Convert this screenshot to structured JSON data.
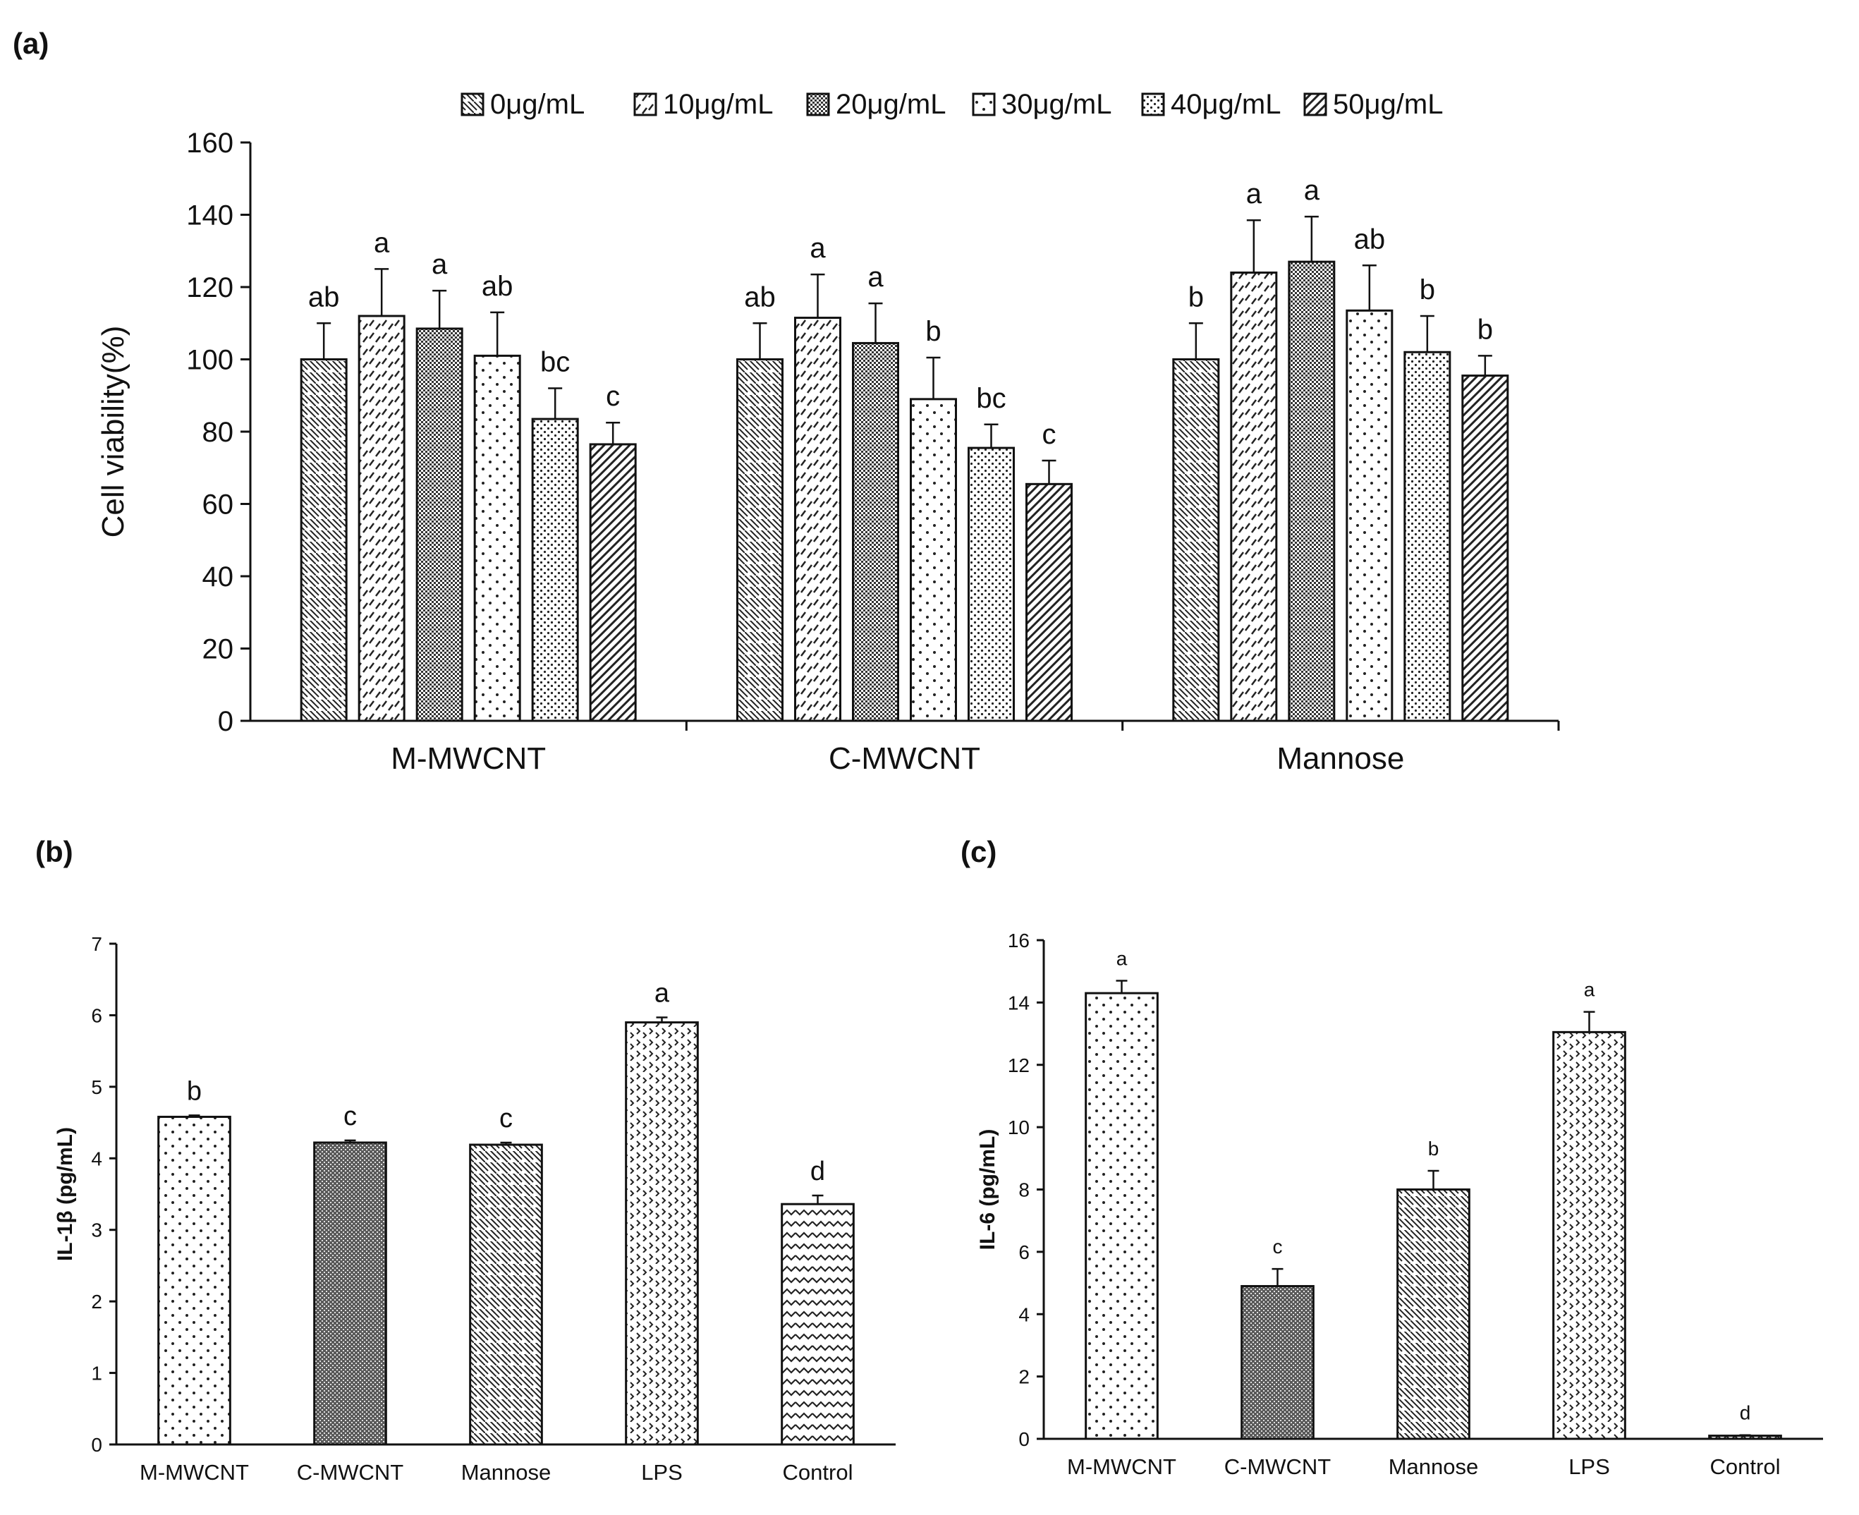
{
  "panels": {
    "a": "(a)",
    "b": "(b)",
    "c": "(c)"
  },
  "chart_data": [
    {
      "id": "a",
      "type": "bar",
      "xlabel": "",
      "ylabel": "Cell viability(%)",
      "ylim": [
        0,
        160
      ],
      "yticks": [
        0,
        20,
        40,
        60,
        80,
        100,
        120,
        140,
        160
      ],
      "categories": [
        "M-MWCNT",
        "C-MWCNT",
        "Mannose"
      ],
      "legend_position": "top",
      "series": [
        {
          "name": "0μg/mL",
          "pattern": "backslash",
          "values": [
            100,
            100,
            100
          ],
          "errors": [
            10,
            10,
            10
          ],
          "letters": [
            "ab",
            "ab",
            "b"
          ]
        },
        {
          "name": "10μg/mL",
          "pattern": "slash-dash",
          "values": [
            112,
            111.5,
            124
          ],
          "errors": [
            13,
            12,
            14.5
          ],
          "letters": [
            "a",
            "a",
            "a"
          ]
        },
        {
          "name": "20μg/mL",
          "pattern": "dense-dots",
          "values": [
            108.5,
            104.5,
            127
          ],
          "errors": [
            10.5,
            11,
            12.5
          ],
          "letters": [
            "a",
            "a",
            "a"
          ]
        },
        {
          "name": "30μg/mL",
          "pattern": "sparse-dots",
          "values": [
            101,
            89,
            113.5
          ],
          "errors": [
            12,
            11.5,
            12.5
          ],
          "letters": [
            "ab",
            "b",
            "ab"
          ]
        },
        {
          "name": "40μg/mL",
          "pattern": "fine-dots",
          "values": [
            83.5,
            75.5,
            102
          ],
          "errors": [
            8.5,
            6.5,
            10
          ],
          "letters": [
            "bc",
            "bc",
            "b"
          ]
        },
        {
          "name": "50μg/mL",
          "pattern": "hatch",
          "values": [
            76.5,
            65.5,
            95.5
          ],
          "errors": [
            6,
            6.5,
            5.5
          ],
          "letters": [
            "c",
            "c",
            "b"
          ]
        }
      ]
    },
    {
      "id": "b",
      "type": "bar",
      "xlabel": "",
      "ylabel": "IL-1β (pg/mL)",
      "ylim": [
        0,
        7
      ],
      "yticks": [
        0,
        1,
        2,
        3,
        4,
        5,
        6,
        7
      ],
      "categories": [
        "M-MWCNT",
        "C-MWCNT",
        "Mannose",
        "LPS",
        "Control"
      ],
      "values": [
        4.58,
        4.22,
        4.19,
        5.9,
        3.36
      ],
      "errors": [
        0.02,
        0.03,
        0.03,
        0.07,
        0.12
      ],
      "letters": [
        "b",
        "c",
        "c",
        "a",
        "d"
      ],
      "patterns": [
        "sparse-dots",
        "dark-grid",
        "backslash",
        "chevron",
        "zigzag"
      ]
    },
    {
      "id": "c",
      "type": "bar",
      "xlabel": "",
      "ylabel": "IL-6 (pg/mL)",
      "ylim": [
        0,
        16
      ],
      "yticks": [
        0,
        2,
        4,
        6,
        8,
        10,
        12,
        14,
        16
      ],
      "categories": [
        "M-MWCNT",
        "C-MWCNT",
        "Mannose",
        "LPS",
        "Control"
      ],
      "values": [
        14.3,
        4.9,
        8.0,
        13.05,
        0.1
      ],
      "errors": [
        0.4,
        0.55,
        0.6,
        0.65,
        0.02
      ],
      "letters": [
        "a",
        "c",
        "b",
        "a",
        "d"
      ],
      "patterns": [
        "sparse-dots",
        "dark-grid",
        "backslash",
        "chevron",
        "zigzag"
      ]
    }
  ]
}
